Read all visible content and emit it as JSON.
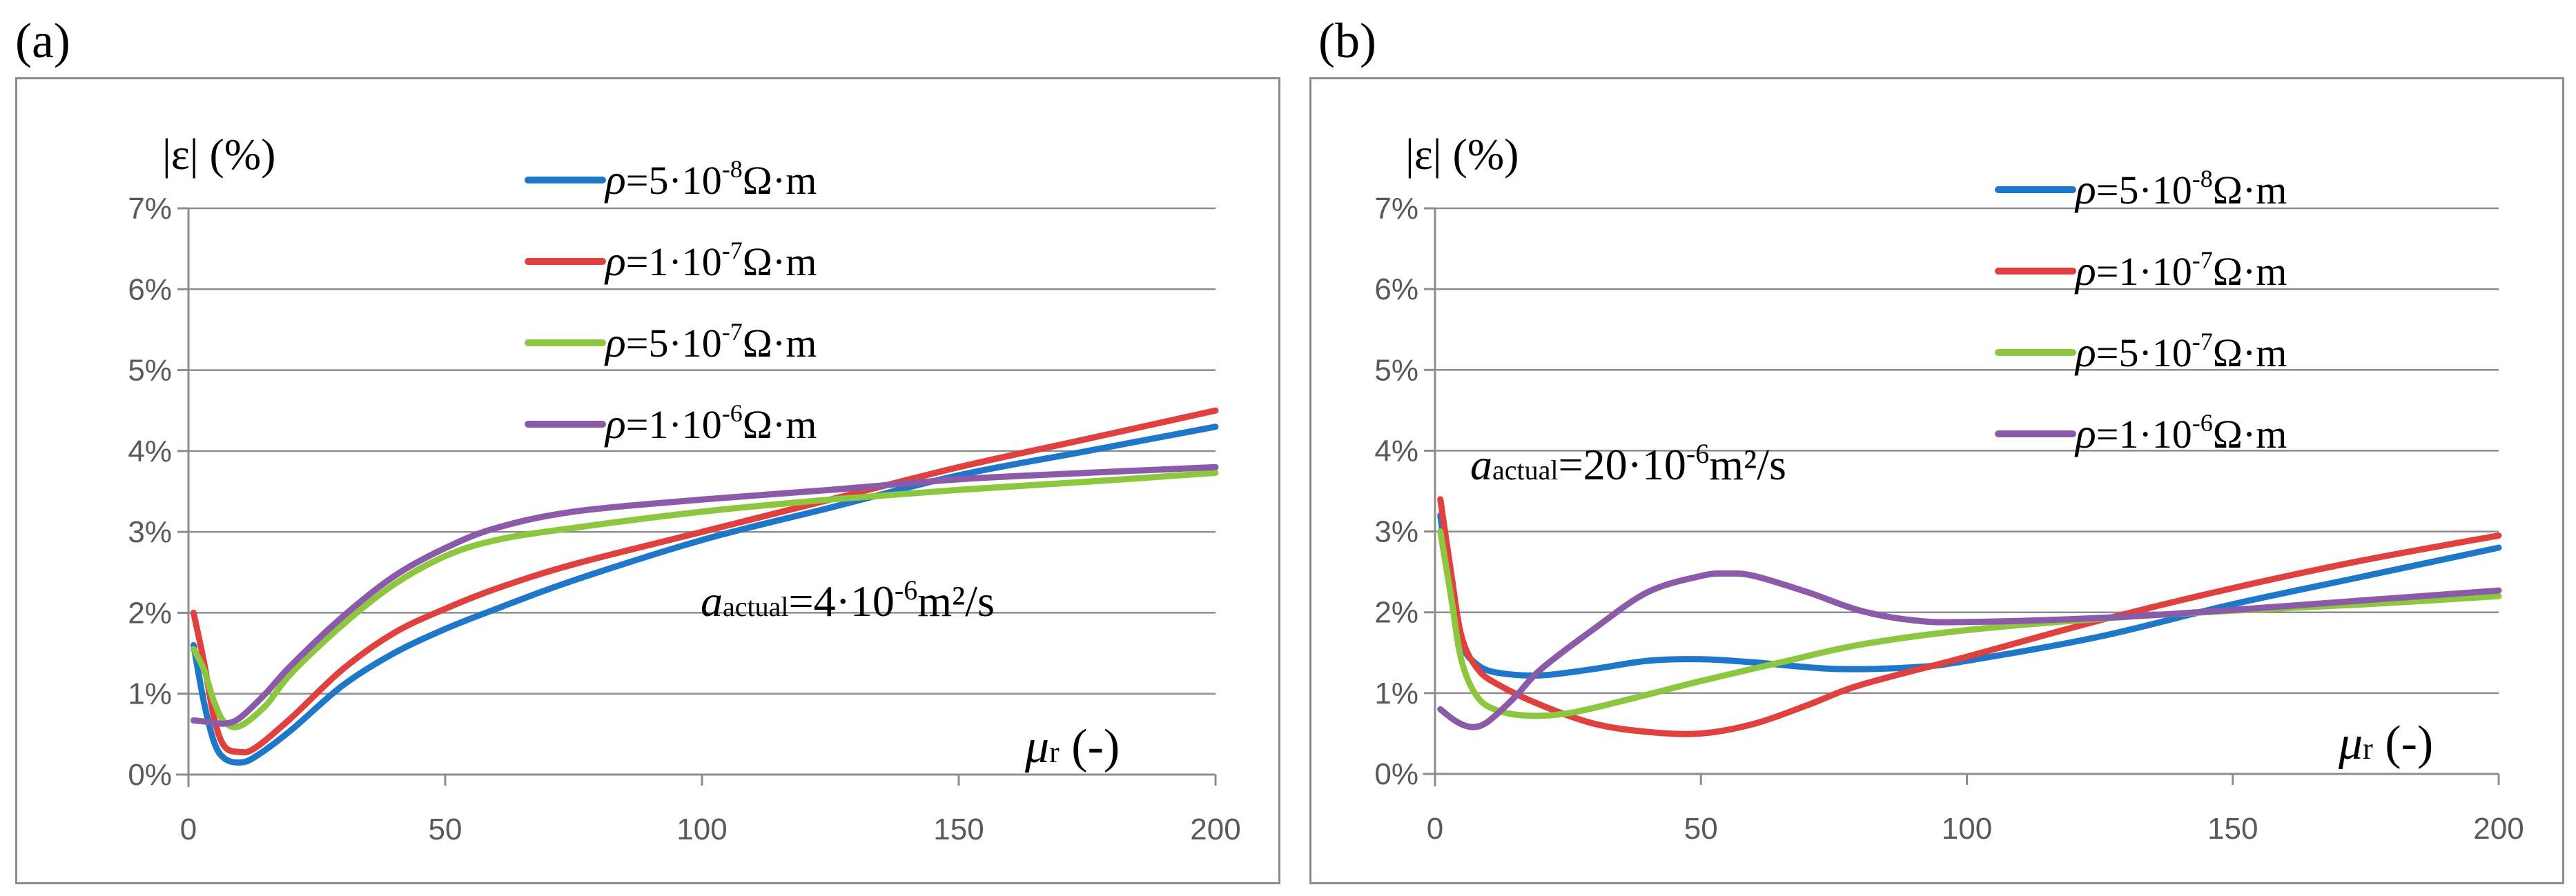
{
  "panels": [
    {
      "label": "(a)",
      "ylabel": "|ε| (%)",
      "xlabel_sym": "μ",
      "xlabel_sub": "r",
      "xlabel_unit": " (-)",
      "annotation": {
        "sym": "a",
        "sub": "actual",
        "text": "=4·10",
        "sup": "-6",
        "tail": "m²/s"
      },
      "chart_data": {
        "type": "line",
        "xlim": [
          0,
          200
        ],
        "ylim": [
          0,
          7
        ],
        "xticks": [
          0,
          50,
          100,
          150,
          200
        ],
        "yticks": [
          0,
          1,
          2,
          3,
          4,
          5,
          6,
          7
        ],
        "ytick_labels": [
          "0%",
          "1%",
          "2%",
          "3%",
          "4%",
          "5%",
          "6%",
          "7%"
        ],
        "series": [
          {
            "name": "ρ=5·10-8Ω·m",
            "legend": {
              "sym": "ρ",
              "pre": "=5·10",
              "sup": "-8",
              "post": "Ω·m"
            },
            "color": "#1f77c9",
            "x": [
              1,
              3,
              5,
              7,
              10,
              13,
              20,
              30,
              40,
              50,
              60,
              75,
              100,
              125,
              150,
              175,
              200
            ],
            "y": [
              1.6,
              0.9,
              0.4,
              0.2,
              0.15,
              0.22,
              0.55,
              1.1,
              1.5,
              1.8,
              2.05,
              2.4,
              2.9,
              3.3,
              3.7,
              4.0,
              4.3
            ]
          },
          {
            "name": "ρ=1·10-7Ω·m",
            "legend": {
              "sym": "ρ",
              "pre": "=1·10",
              "sup": "-7",
              "post": "Ω·m"
            },
            "color": "#e0403e",
            "x": [
              1,
              3,
              5,
              7,
              10,
              13,
              20,
              30,
              40,
              50,
              60,
              75,
              100,
              125,
              150,
              175,
              200
            ],
            "y": [
              2.0,
              1.4,
              0.7,
              0.35,
              0.28,
              0.33,
              0.7,
              1.3,
              1.75,
              2.05,
              2.3,
              2.6,
              3.0,
              3.4,
              3.8,
              4.15,
              4.5
            ]
          },
          {
            "name": "ρ=5·10-7Ω·m",
            "legend": {
              "sym": "ρ",
              "pre": "=5·10",
              "sup": "-7",
              "post": "Ω·m"
            },
            "color": "#8dc63f",
            "x": [
              1,
              3,
              5,
              7,
              10,
              15,
              20,
              30,
              40,
              50,
              60,
              75,
              100,
              125,
              150,
              175,
              200
            ],
            "y": [
              1.55,
              1.3,
              0.9,
              0.65,
              0.6,
              0.85,
              1.25,
              1.85,
              2.35,
              2.7,
              2.9,
              3.05,
              3.25,
              3.4,
              3.52,
              3.62,
              3.73
            ]
          },
          {
            "name": "ρ=1·10-6Ω·m",
            "legend": {
              "sym": "ρ",
              "pre": "=1·10",
              "sup": "-6",
              "post": "Ω·m"
            },
            "color": "#8b5aa8",
            "x": [
              1,
              4,
              7,
              10,
              15,
              20,
              30,
              40,
              50,
              60,
              75,
              100,
              125,
              150,
              175,
              200
            ],
            "y": [
              0.67,
              0.65,
              0.63,
              0.7,
              1.0,
              1.35,
              1.95,
              2.45,
              2.8,
              3.05,
              3.25,
              3.4,
              3.52,
              3.65,
              3.73,
              3.8
            ]
          }
        ]
      }
    },
    {
      "label": "(b)",
      "ylabel": "|ε| (%)",
      "xlabel_sym": "μ",
      "xlabel_sub": "r",
      "xlabel_unit": " (-)",
      "annotation": {
        "sym": "a",
        "sub": "actual",
        "text": "=20·10",
        "sup": "-6",
        "tail": "m²/s"
      },
      "chart_data": {
        "type": "line",
        "xlim": [
          0,
          200
        ],
        "ylim": [
          0,
          7
        ],
        "xticks": [
          0,
          50,
          100,
          150,
          200
        ],
        "yticks": [
          0,
          1,
          2,
          3,
          4,
          5,
          6,
          7
        ],
        "ytick_labels": [
          "0%",
          "1%",
          "2%",
          "3%",
          "4%",
          "5%",
          "6%",
          "7%"
        ],
        "series": [
          {
            "name": "ρ=5·10-8Ω·m",
            "legend": {
              "sym": "ρ",
              "pre": "=5·10",
              "sup": "-8",
              "post": "Ω·m"
            },
            "color": "#1f77c9",
            "x": [
              1,
              3,
              5,
              8,
              12,
              20,
              30,
              40,
              50,
              60,
              75,
              90,
              100,
              125,
              150,
              175,
              200
            ],
            "y": [
              3.2,
              2.2,
              1.6,
              1.35,
              1.25,
              1.22,
              1.3,
              1.4,
              1.42,
              1.38,
              1.3,
              1.32,
              1.4,
              1.7,
              2.1,
              2.45,
              2.8
            ]
          },
          {
            "name": "ρ=1·10-7Ω·m",
            "legend": {
              "sym": "ρ",
              "pre": "=1·10",
              "sup": "-7",
              "post": "Ω·m"
            },
            "color": "#e0403e",
            "x": [
              1,
              3,
              5,
              8,
              12,
              20,
              30,
              40,
              50,
              60,
              70,
              80,
              100,
              125,
              150,
              175,
              200
            ],
            "y": [
              3.4,
              2.5,
              1.7,
              1.3,
              1.1,
              0.85,
              0.62,
              0.52,
              0.5,
              0.62,
              0.85,
              1.1,
              1.45,
              1.9,
              2.3,
              2.65,
              2.95
            ]
          },
          {
            "name": "ρ=5·10-7Ω·m",
            "legend": {
              "sym": "ρ",
              "pre": "=5·10",
              "sup": "-7",
              "post": "Ω·m"
            },
            "color": "#8dc63f",
            "x": [
              1,
              3,
              5,
              8,
              12,
              18,
              25,
              35,
              50,
              65,
              80,
              100,
              125,
              150,
              175,
              200
            ],
            "y": [
              3.0,
              2.2,
              1.4,
              0.95,
              0.78,
              0.72,
              0.75,
              0.9,
              1.15,
              1.38,
              1.6,
              1.78,
              1.92,
              2.02,
              2.1,
              2.2
            ]
          },
          {
            "name": "ρ=1·10-6Ω·m",
            "legend": {
              "sym": "ρ",
              "pre": "=1·10",
              "sup": "-6",
              "post": "Ω·m"
            },
            "color": "#8b5aa8",
            "x": [
              1,
              4,
              7,
              10,
              15,
              20,
              30,
              40,
              50,
              55,
              60,
              70,
              80,
              90,
              100,
              125,
              150,
              175,
              200
            ],
            "y": [
              0.8,
              0.65,
              0.58,
              0.65,
              0.95,
              1.3,
              1.8,
              2.25,
              2.45,
              2.48,
              2.45,
              2.25,
              2.02,
              1.9,
              1.88,
              1.93,
              2.03,
              2.15,
              2.27
            ]
          }
        ]
      }
    }
  ]
}
